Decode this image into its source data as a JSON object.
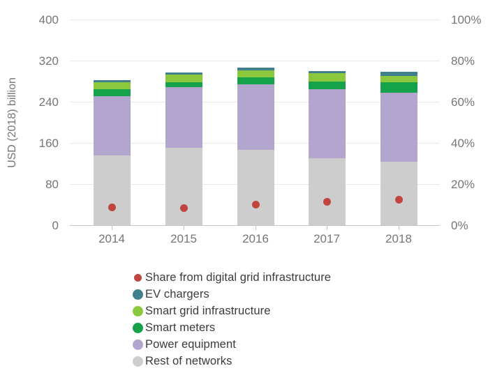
{
  "chart_data": {
    "type": "bar",
    "subtype": "stacked-bars-with-scatter-overlay",
    "title": "",
    "categories": [
      "2014",
      "2015",
      "2016",
      "2017",
      "2018"
    ],
    "series": [
      {
        "name": "Rest of networks",
        "color": "#cdcdcd",
        "values": [
          136,
          150,
          147,
          130,
          124
        ]
      },
      {
        "name": "Power equipment",
        "color": "#b3a6ce",
        "values": [
          115,
          118,
          127,
          135,
          134
        ]
      },
      {
        "name": "Smart meters",
        "color": "#16a24a",
        "values": [
          14,
          10,
          14,
          15,
          20
        ]
      },
      {
        "name": "Smart grid infrastructure",
        "color": "#8cc83e",
        "values": [
          13,
          15,
          13,
          15,
          12
        ]
      },
      {
        "name": "EV chargers",
        "color": "#40808d",
        "values": [
          4,
          4,
          6,
          4,
          8
        ]
      }
    ],
    "stacked_totals": [
      282,
      297,
      307,
      299,
      298
    ],
    "scatter_series": {
      "name": "Share from digital grid infrastructure",
      "color": "#c0453e",
      "axis": "right",
      "values_percent": [
        8.5,
        8.2,
        10.0,
        11.2,
        12.5
      ]
    },
    "ylabel": "USD (2018) billion",
    "xlabel": "",
    "y_left": {
      "min": 0,
      "max": 400,
      "ticks": [
        0,
        80,
        160,
        240,
        320,
        400
      ],
      "tick_labels": [
        "0",
        "80",
        "160",
        "240",
        "320",
        "400"
      ]
    },
    "y_right": {
      "min": 0,
      "max": 100,
      "ticks": [
        0,
        20,
        40,
        60,
        80,
        100
      ],
      "tick_labels": [
        "0%",
        "20%",
        "40%",
        "60%",
        "80%",
        "100%"
      ]
    },
    "grid": true,
    "legend_position": "bottom-left",
    "legend_order": [
      "Share from digital grid infrastructure",
      "EV chargers",
      "Smart grid infrastructure",
      "Smart meters",
      "Power equipment",
      "Rest of networks"
    ]
  }
}
